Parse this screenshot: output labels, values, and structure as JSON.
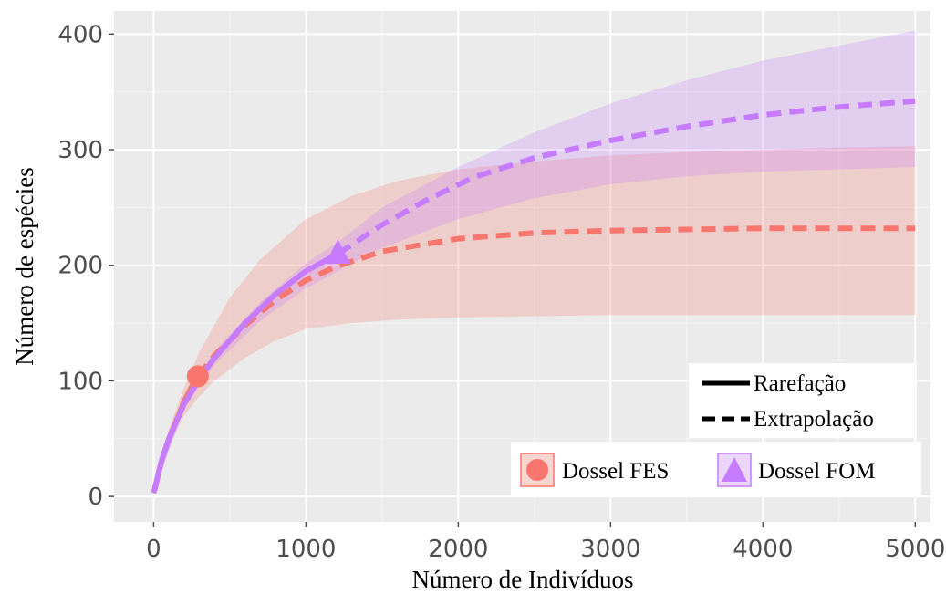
{
  "chart_data": {
    "type": "line",
    "xlabel": "Número de Indivíduos",
    "ylabel": "Número de espécies",
    "xlim": [
      -260,
      5100
    ],
    "ylim": [
      -22,
      420
    ],
    "x_ticks": [
      0,
      1000,
      2000,
      3000,
      4000,
      5000
    ],
    "y_ticks": [
      0,
      100,
      200,
      300,
      400
    ],
    "grid": true,
    "legend_position": "bottom-right",
    "line_types": {
      "solid": "Rarefação",
      "dashed": "Extrapolação"
    },
    "series": [
      {
        "name": "Dossel FES",
        "color": "#F8766D",
        "marker": "circle",
        "observed": {
          "x": 290,
          "y": 104
        },
        "rarefaction": [
          [
            5,
            5
          ],
          [
            50,
            30
          ],
          [
            100,
            50
          ],
          [
            150,
            66
          ],
          [
            200,
            82
          ],
          [
            250,
            95
          ],
          [
            290,
            104
          ]
        ],
        "extrapolation": [
          [
            290,
            104
          ],
          [
            400,
            122
          ],
          [
            600,
            148
          ],
          [
            800,
            170
          ],
          [
            1000,
            187
          ],
          [
            1200,
            199
          ],
          [
            1500,
            212
          ],
          [
            2000,
            223
          ],
          [
            2500,
            228
          ],
          [
            3000,
            230
          ],
          [
            3500,
            231
          ],
          [
            4000,
            232
          ],
          [
            4500,
            232
          ],
          [
            5000,
            232
          ]
        ],
        "ci_upper": [
          [
            5,
            6
          ],
          [
            100,
            58
          ],
          [
            200,
            94
          ],
          [
            300,
            125
          ],
          [
            500,
            172
          ],
          [
            700,
            205
          ],
          [
            1000,
            240
          ],
          [
            1300,
            260
          ],
          [
            1600,
            273
          ],
          [
            2000,
            283
          ],
          [
            2500,
            290
          ],
          [
            3000,
            295
          ],
          [
            3500,
            298
          ],
          [
            4000,
            300
          ],
          [
            4500,
            302
          ],
          [
            5000,
            303
          ]
        ],
        "ci_lower": [
          [
            5,
            4
          ],
          [
            100,
            42
          ],
          [
            200,
            70
          ],
          [
            290,
            85
          ],
          [
            400,
            100
          ],
          [
            600,
            120
          ],
          [
            800,
            135
          ],
          [
            1000,
            145
          ],
          [
            1300,
            150
          ],
          [
            1600,
            153
          ],
          [
            2000,
            155
          ],
          [
            2500,
            156
          ],
          [
            3000,
            157
          ],
          [
            4000,
            157
          ],
          [
            5000,
            157
          ]
        ]
      },
      {
        "name": "Dossel FOM",
        "color": "#C77CFF",
        "marker": "triangle",
        "observed": {
          "x": 1210,
          "y": 210
        },
        "rarefaction": [
          [
            5,
            5
          ],
          [
            50,
            30
          ],
          [
            100,
            50
          ],
          [
            200,
            80
          ],
          [
            300,
            102
          ],
          [
            400,
            120
          ],
          [
            600,
            150
          ],
          [
            800,
            175
          ],
          [
            1000,
            195
          ],
          [
            1210,
            210
          ]
        ],
        "extrapolation": [
          [
            1210,
            210
          ],
          [
            1500,
            235
          ],
          [
            1800,
            257
          ],
          [
            2100,
            276
          ],
          [
            2500,
            293
          ],
          [
            3000,
            308
          ],
          [
            3500,
            320
          ],
          [
            4000,
            330
          ],
          [
            4500,
            337
          ],
          [
            5000,
            342
          ]
        ],
        "ci_upper": [
          [
            5,
            6
          ],
          [
            200,
            84
          ],
          [
            400,
            126
          ],
          [
            700,
            168
          ],
          [
            1000,
            202
          ],
          [
            1210,
            220
          ],
          [
            1500,
            250
          ],
          [
            2000,
            285
          ],
          [
            2500,
            315
          ],
          [
            3000,
            340
          ],
          [
            3500,
            360
          ],
          [
            4000,
            377
          ],
          [
            4500,
            390
          ],
          [
            5000,
            403
          ]
        ],
        "ci_lower": [
          [
            5,
            4
          ],
          [
            200,
            76
          ],
          [
            400,
            114
          ],
          [
            700,
            152
          ],
          [
            1000,
            180
          ],
          [
            1210,
            195
          ],
          [
            1500,
            215
          ],
          [
            2000,
            240
          ],
          [
            2500,
            258
          ],
          [
            3000,
            270
          ],
          [
            3500,
            277
          ],
          [
            4000,
            281
          ],
          [
            4500,
            283
          ],
          [
            5000,
            285
          ]
        ]
      }
    ]
  }
}
